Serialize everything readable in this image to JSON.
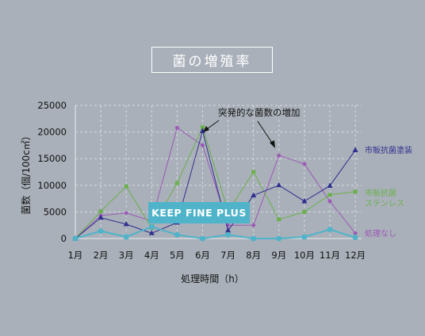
{
  "chart_data": {
    "type": "line",
    "title": "菌の増殖率",
    "xlabel": "処理時間（h）",
    "ylabel": "菌数（個/100c㎡）",
    "categories": [
      "1月",
      "2月",
      "3月",
      "4月",
      "5月",
      "6月",
      "7月",
      "8月",
      "9月",
      "10月",
      "11月",
      "12月"
    ],
    "y_ticks": [
      "0",
      "5000",
      "10000",
      "15000",
      "20000",
      "25000"
    ],
    "ylim": [
      0,
      25000
    ],
    "grid": "dashed",
    "annotation": "突発的な菌数の増加",
    "series": [
      {
        "name": "処理なし",
        "color": "#9b59b6",
        "marker": "diamond",
        "values": [
          0,
          4300,
          4800,
          3300,
          20800,
          17500,
          2500,
          2500,
          15600,
          14000,
          7000,
          1000
        ]
      },
      {
        "name": "市販抗菌\nステンレス",
        "color": "#6ab04c",
        "marker": "square",
        "values": [
          0,
          5100,
          9800,
          2000,
          10400,
          20900,
          5100,
          12500,
          3600,
          5000,
          8200,
          8800
        ]
      },
      {
        "name": "市販抗菌塗装",
        "color": "#2f2f8f",
        "marker": "triangle",
        "values": [
          0,
          3900,
          2700,
          1000,
          3000,
          20200,
          1500,
          8100,
          10000,
          7000,
          9900,
          16600
        ]
      },
      {
        "name": "KEEP FINE PLUS",
        "color": "#4fb3c9",
        "marker": "circle",
        "values": [
          0,
          1400,
          300,
          2200,
          700,
          0,
          700,
          0,
          0,
          300,
          1700,
          200
        ]
      }
    ]
  }
}
